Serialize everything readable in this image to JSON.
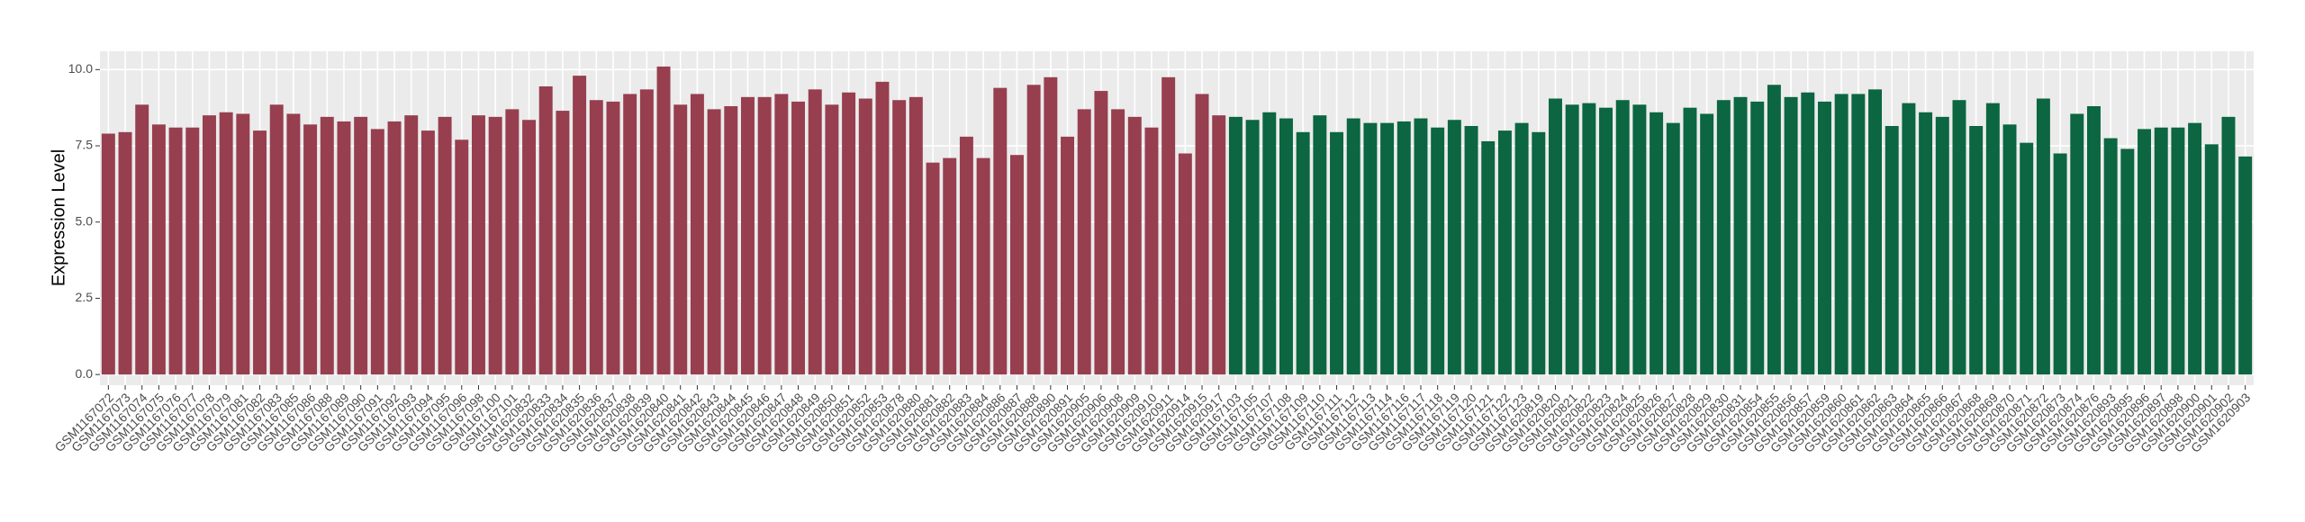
{
  "chart_data": {
    "type": "bar",
    "y_label": "Expression Level",
    "categories": [
      "GSM1167072",
      "GSM1167073",
      "GSM1167074",
      "GSM1167075",
      "GSM1167076",
      "GSM1167077",
      "GSM1167078",
      "GSM1167079",
      "GSM1167081",
      "GSM1167082",
      "GSM1167083",
      "GSM1167085",
      "GSM1167086",
      "GSM1167088",
      "GSM1167089",
      "GSM1167090",
      "GSM1167091",
      "GSM1167092",
      "GSM1167093",
      "GSM1167094",
      "GSM1167095",
      "GSM1167096",
      "GSM1167098",
      "GSM1167100",
      "GSM1167101",
      "GSM1620832",
      "GSM1620833",
      "GSM1620834",
      "GSM1620835",
      "GSM1620836",
      "GSM1620837",
      "GSM1620838",
      "GSM1620839",
      "GSM1620840",
      "GSM1620841",
      "GSM1620842",
      "GSM1620843",
      "GSM1620844",
      "GSM1620845",
      "GSM1620846",
      "GSM1620847",
      "GSM1620848",
      "GSM1620849",
      "GSM1620850",
      "GSM1620851",
      "GSM1620852",
      "GSM1620853",
      "GSM1620878",
      "GSM1620880",
      "GSM1620881",
      "GSM1620882",
      "GSM1620883",
      "GSM1620884",
      "GSM1620886",
      "GSM1620887",
      "GSM1620888",
      "GSM1620890",
      "GSM1620891",
      "GSM1620905",
      "GSM1620906",
      "GSM1620908",
      "GSM1620909",
      "GSM1620910",
      "GSM1620911",
      "GSM1620914",
      "GSM1620915",
      "GSM1620917",
      "GSM1167103",
      "GSM1167105",
      "GSM1167107",
      "GSM1167108",
      "GSM1167109",
      "GSM1167110",
      "GSM1167111",
      "GSM1167112",
      "GSM1167113",
      "GSM1167114",
      "GSM1167116",
      "GSM1167117",
      "GSM1167118",
      "GSM1167119",
      "GSM1167120",
      "GSM1167121",
      "GSM1167122",
      "GSM1167123",
      "GSM1620819",
      "GSM1620820",
      "GSM1620821",
      "GSM1620822",
      "GSM1620823",
      "GSM1620824",
      "GSM1620825",
      "GSM1620826",
      "GSM1620827",
      "GSM1620828",
      "GSM1620829",
      "GSM1620830",
      "GSM1620831",
      "GSM1620854",
      "GSM1620855",
      "GSM1620856",
      "GSM1620857",
      "GSM1620859",
      "GSM1620860",
      "GSM1620861",
      "GSM1620862",
      "GSM1620863",
      "GSM1620864",
      "GSM1620865",
      "GSM1620866",
      "GSM1620867",
      "GSM1620868",
      "GSM1620869",
      "GSM1620870",
      "GSM1620871",
      "GSM1620872",
      "GSM1620873",
      "GSM1620874",
      "GSM1620876",
      "GSM1620893",
      "GSM1620895",
      "GSM1620896",
      "GSM1620897",
      "GSM1620898",
      "GSM1620900",
      "GSM1620901",
      "GSM1620902",
      "GSM1620903"
    ],
    "values": [
      7.9,
      7.95,
      8.85,
      8.2,
      8.1,
      8.1,
      8.5,
      8.6,
      8.55,
      8.0,
      8.85,
      8.55,
      8.2,
      8.45,
      8.3,
      8.45,
      8.05,
      8.3,
      8.5,
      8.0,
      8.45,
      7.7,
      8.5,
      8.45,
      8.7,
      8.35,
      9.45,
      8.65,
      9.8,
      9.0,
      8.95,
      9.2,
      9.35,
      10.1,
      8.85,
      9.2,
      8.7,
      8.8,
      9.1,
      9.1,
      9.2,
      8.95,
      9.35,
      8.85,
      9.25,
      9.05,
      9.6,
      9.0,
      9.1,
      6.95,
      7.1,
      7.8,
      7.1,
      9.4,
      7.2,
      9.5,
      9.75,
      7.8,
      8.7,
      9.3,
      8.7,
      8.45,
      8.1,
      9.75,
      7.25,
      9.2,
      8.5,
      8.45,
      8.35,
      8.6,
      8.4,
      7.95,
      8.5,
      7.95,
      8.4,
      8.25,
      8.25,
      8.3,
      8.4,
      8.1,
      8.35,
      8.15,
      7.65,
      8.0,
      8.25,
      7.95,
      9.05,
      8.85,
      8.9,
      8.75,
      9.0,
      8.85,
      8.6,
      8.25,
      8.75,
      8.55,
      9.0,
      9.1,
      8.95,
      9.5,
      9.1,
      9.25,
      8.95,
      9.2,
      9.2,
      9.35,
      8.15,
      8.9,
      8.6,
      8.45,
      9.0,
      8.15,
      8.9,
      8.2,
      7.6,
      9.05,
      7.25,
      8.55,
      8.8,
      7.75,
      7.4,
      8.05,
      8.1,
      8.1,
      8.25,
      7.55,
      8.45,
      7.15
    ],
    "colors": [
      "#973f4f",
      "#973f4f",
      "#973f4f",
      "#973f4f",
      "#973f4f",
      "#973f4f",
      "#973f4f",
      "#973f4f",
      "#973f4f",
      "#973f4f",
      "#973f4f",
      "#973f4f",
      "#973f4f",
      "#973f4f",
      "#973f4f",
      "#973f4f",
      "#973f4f",
      "#973f4f",
      "#973f4f",
      "#973f4f",
      "#973f4f",
      "#973f4f",
      "#973f4f",
      "#973f4f",
      "#973f4f",
      "#973f4f",
      "#973f4f",
      "#973f4f",
      "#973f4f",
      "#973f4f",
      "#973f4f",
      "#973f4f",
      "#973f4f",
      "#973f4f",
      "#973f4f",
      "#973f4f",
      "#973f4f",
      "#973f4f",
      "#973f4f",
      "#973f4f",
      "#973f4f",
      "#973f4f",
      "#973f4f",
      "#973f4f",
      "#973f4f",
      "#973f4f",
      "#973f4f",
      "#973f4f",
      "#973f4f",
      "#973f4f",
      "#973f4f",
      "#973f4f",
      "#973f4f",
      "#973f4f",
      "#973f4f",
      "#973f4f",
      "#973f4f",
      "#973f4f",
      "#973f4f",
      "#973f4f",
      "#973f4f",
      "#973f4f",
      "#973f4f",
      "#973f4f",
      "#973f4f",
      "#973f4f",
      "#973f4f",
      "#0b6641",
      "#0b6641",
      "#0b6641",
      "#0b6641",
      "#0b6641",
      "#0b6641",
      "#0b6641",
      "#0b6641",
      "#0b6641",
      "#0b6641",
      "#0b6641",
      "#0b6641",
      "#0b6641",
      "#0b6641",
      "#0b6641",
      "#0b6641",
      "#0b6641",
      "#0b6641",
      "#0b6641",
      "#0b6641",
      "#0b6641",
      "#0b6641",
      "#0b6641",
      "#0b6641",
      "#0b6641",
      "#0b6641",
      "#0b6641",
      "#0b6641",
      "#0b6641",
      "#0b6641",
      "#0b6641",
      "#0b6641",
      "#0b6641",
      "#0b6641",
      "#0b6641",
      "#0b6641",
      "#0b6641",
      "#0b6641",
      "#0b6641",
      "#0b6641",
      "#0b6641",
      "#0b6641",
      "#0b6641",
      "#0b6641",
      "#0b6641",
      "#0b6641",
      "#0b6641",
      "#0b6641",
      "#0b6641",
      "#0b6641",
      "#0b6641",
      "#0b6641",
      "#0b6641",
      "#0b6641",
      "#0b6641",
      "#0b6641",
      "#0b6641",
      "#0b6641",
      "#0b6641",
      "#0b6641",
      "#0b6641"
    ],
    "ylim": [
      -0.35,
      10.6
    ],
    "yticks": [
      {
        "value": 0,
        "label": "0.0"
      },
      {
        "value": 2.5,
        "label": "2.5"
      },
      {
        "value": 5,
        "label": "5.0"
      },
      {
        "value": 7.5,
        "label": "7.5"
      },
      {
        "value": 10,
        "label": "10.0"
      }
    ],
    "grid": true
  }
}
